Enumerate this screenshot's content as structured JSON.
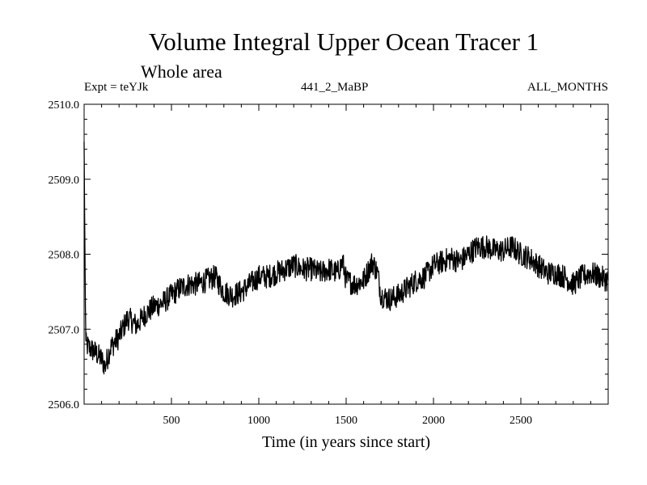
{
  "chart_data": {
    "type": "line",
    "title": "Volume Integral Upper Ocean Tracer 1",
    "subtitle": "Whole area",
    "experiment": "Expt = teYJk",
    "run_label": "441_2_MaBP",
    "months_label": "ALL_MONTHS",
    "xlabel": "Time (in years since start)",
    "ylabel": "",
    "xlim": [
      0,
      3000
    ],
    "ylim": [
      2506.0,
      2510.0
    ],
    "x_ticks": [
      500,
      1000,
      1500,
      2000,
      2500
    ],
    "x_tick_labels": [
      "500",
      "1000",
      "1500",
      "2000",
      "2500"
    ],
    "y_ticks": [
      2506.0,
      2507.0,
      2508.0,
      2509.0,
      2510.0
    ],
    "y_tick_labels": [
      "2506.0",
      "2507.0",
      "2508.0",
      "2509.0",
      "2510.0"
    ],
    "series": [
      {
        "name": "Tracer 1",
        "color": "#000000",
        "x": [
          0,
          5,
          10,
          30,
          60,
          100,
          120,
          150,
          200,
          230,
          250,
          300,
          350,
          400,
          450,
          500,
          550,
          600,
          650,
          700,
          750,
          800,
          850,
          900,
          950,
          1000,
          1050,
          1100,
          1150,
          1200,
          1250,
          1300,
          1350,
          1400,
          1450,
          1480,
          1500,
          1550,
          1600,
          1650,
          1680,
          1700,
          1750,
          1800,
          1850,
          1900,
          1950,
          2000,
          2050,
          2100,
          2150,
          2200,
          2250,
          2300,
          2350,
          2400,
          2450,
          2500,
          2550,
          2600,
          2650,
          2700,
          2750,
          2800,
          2850,
          2900,
          2950,
          3000
        ],
        "values": [
          2509.5,
          2507.9,
          2506.8,
          2506.75,
          2506.7,
          2506.6,
          2506.5,
          2506.75,
          2506.9,
          2507.05,
          2507.15,
          2507.05,
          2507.2,
          2507.3,
          2507.35,
          2507.45,
          2507.55,
          2507.6,
          2507.6,
          2507.65,
          2507.7,
          2507.5,
          2507.45,
          2507.5,
          2507.6,
          2507.7,
          2507.7,
          2507.75,
          2507.8,
          2507.85,
          2507.8,
          2507.8,
          2507.75,
          2507.8,
          2507.75,
          2507.9,
          2507.65,
          2507.6,
          2507.65,
          2507.9,
          2507.75,
          2507.45,
          2507.4,
          2507.45,
          2507.55,
          2507.65,
          2507.7,
          2507.85,
          2507.9,
          2507.95,
          2507.9,
          2508.0,
          2508.1,
          2508.1,
          2508.05,
          2508.05,
          2508.1,
          2508.0,
          2507.95,
          2507.85,
          2507.75,
          2507.75,
          2507.7,
          2507.6,
          2507.7,
          2507.75,
          2507.7,
          2507.65
        ]
      }
    ]
  }
}
